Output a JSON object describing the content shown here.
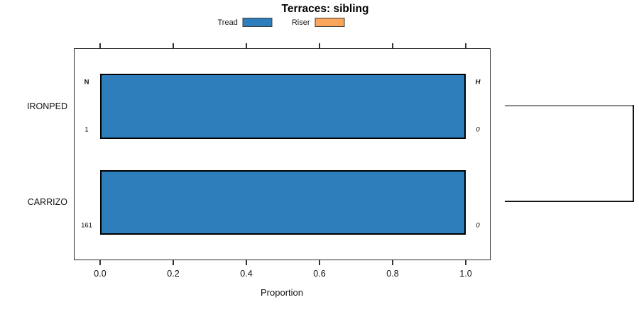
{
  "chart_data": {
    "type": "bar",
    "orientation": "horizontal",
    "stacked": true,
    "title": "Terraces: sibling",
    "categories": [
      "IRONPED",
      "CARRIZO"
    ],
    "series": [
      {
        "name": "Tread",
        "color": "#2e7ebc",
        "values": [
          1.0,
          1.0
        ]
      },
      {
        "name": "Riser",
        "color": "#fba55c",
        "values": [
          0.0,
          0.0
        ]
      }
    ],
    "xlabel": "Proportion",
    "xlim": [
      0,
      1
    ],
    "xtick_values": [
      0.0,
      0.2,
      0.4,
      0.6,
      0.8,
      1.0
    ],
    "xtick_labels": [
      "0.0",
      "0.2",
      "0.4",
      "0.6",
      "0.8",
      "1.0"
    ],
    "legend_position": "top",
    "grid": false,
    "bar_border_color": "#000000",
    "annotations": {
      "left_header": "N",
      "left_values": [
        "1",
        "161"
      ],
      "right_header": "H",
      "right_values": [
        "0",
        "0"
      ]
    },
    "sibling_bracket": {
      "connects": [
        "IRONPED",
        "CARRIZO"
      ],
      "top_line_color": "#8a8a8a",
      "side_line_color": "#141414",
      "bottom_line_color": "#141414"
    }
  }
}
